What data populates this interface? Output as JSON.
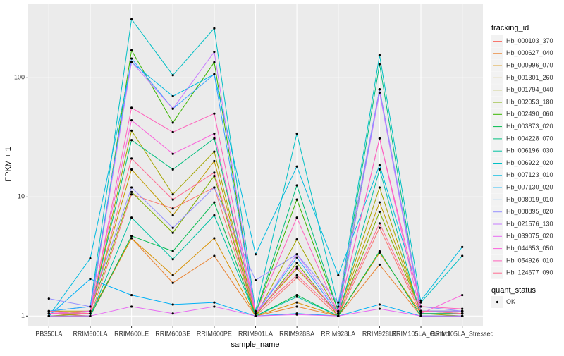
{
  "chart_data": {
    "type": "line",
    "ylabel": "FPKM + 1",
    "xlabel": "sample_name",
    "log_y": true,
    "grid": true,
    "legend_position": "right",
    "legend_title": "tracking_id",
    "categories": [
      "PB350LA",
      "RRIM600LA",
      "RRIM600LE",
      "RRIM600SE",
      "RRIM600PE",
      "RRIM901LA",
      "RRIM928BA",
      "RRIM928LA",
      "RRIM928LE",
      "RRIM105LA_Control",
      "RRIM105LA_Stressed"
    ],
    "ylim": [
      0.83,
      420
    ],
    "yticks": [
      1,
      10,
      100
    ],
    "point_legend": {
      "title": "quant_status",
      "labels": [
        "OK"
      ],
      "color": "#000000"
    },
    "series": [
      {
        "name": "Hb_000103_370",
        "color": "#F8766D",
        "values": [
          1.05,
          1.0,
          10.5,
          8,
          12,
          1.0,
          2.1,
          1.0,
          5.5,
          1.05,
          1.05
        ]
      },
      {
        "name": "Hb_000627_040",
        "color": "#EA8331",
        "values": [
          1.0,
          1.0,
          4.5,
          1.9,
          3.2,
          1.0,
          1.2,
          1.0,
          2.7,
          1.0,
          1.0
        ]
      },
      {
        "name": "Hb_000996_070",
        "color": "#D89000",
        "values": [
          1.05,
          1.05,
          4.5,
          2.2,
          4.5,
          1.0,
          1.3,
          1.0,
          3.4,
          1.05,
          1.05
        ]
      },
      {
        "name": "Hb_001301_260",
        "color": "#C09B00",
        "values": [
          1.1,
          1.1,
          17,
          7,
          20,
          1.05,
          2.5,
          1.05,
          9,
          1.1,
          1.1
        ]
      },
      {
        "name": "Hb_001794_040",
        "color": "#A3A500",
        "values": [
          1.0,
          1.05,
          36,
          10.5,
          24,
          1.0,
          4.4,
          1.05,
          12,
          1.05,
          1.0
        ]
      },
      {
        "name": "Hb_002053_180",
        "color": "#7CAE00",
        "values": [
          1.05,
          1.1,
          11,
          5,
          15,
          1.0,
          2.8,
          1.0,
          7.5,
          1.1,
          1.05
        ]
      },
      {
        "name": "Hb_002490_060",
        "color": "#39B600",
        "values": [
          1.1,
          1.05,
          170,
          42,
          135,
          1.05,
          9.5,
          1.1,
          80,
          1.1,
          1.1
        ]
      },
      {
        "name": "Hb_003873_020",
        "color": "#00BB4E",
        "values": [
          1.0,
          1.0,
          4.7,
          3.5,
          9,
          1.0,
          1.5,
          1.0,
          3.5,
          1.0,
          1.0
        ]
      },
      {
        "name": "Hb_004228_070",
        "color": "#00BF7D",
        "values": [
          1.05,
          1.05,
          30,
          17,
          31,
          1.05,
          12.5,
          1.1,
          130,
          1.05,
          1.05
        ]
      },
      {
        "name": "Hb_006196_030",
        "color": "#00C1A3",
        "values": [
          1.0,
          1.0,
          6.7,
          3,
          7,
          1.0,
          1.45,
          1.0,
          17,
          1.0,
          1.0
        ]
      },
      {
        "name": "Hb_006922_020",
        "color": "#00BFC4",
        "values": [
          1.1,
          1.2,
          310,
          105,
          260,
          1.1,
          34,
          1.2,
          155,
          1.3,
          3.2
        ]
      },
      {
        "name": "Hb_007123_010",
        "color": "#00BAE0",
        "values": [
          1.0,
          3.05,
          135,
          70,
          107,
          3.3,
          18,
          2.2,
          18.5,
          1.35,
          3.8
        ]
      },
      {
        "name": "Hb_007130_020",
        "color": "#00B0F6",
        "values": [
          1.0,
          2.05,
          1.5,
          1.25,
          1.3,
          1.0,
          1.05,
          1.0,
          1.25,
          1.0,
          1.0
        ]
      },
      {
        "name": "Hb_008019_010",
        "color": "#35A2FF",
        "values": [
          1.1,
          1.2,
          145,
          55,
          107,
          1.05,
          3.1,
          1.05,
          80,
          1.1,
          1.1
        ]
      },
      {
        "name": "Hb_008895_020",
        "color": "#9590FF",
        "values": [
          1.4,
          1.2,
          12,
          5.5,
          12,
          2.0,
          3.3,
          1.3,
          80,
          1.2,
          1.1
        ]
      },
      {
        "name": "Hb_021576_130",
        "color": "#C77CFF",
        "values": [
          1.05,
          1.1,
          136,
          55,
          165,
          1.05,
          3.3,
          1.1,
          75,
          1.1,
          1.1
        ]
      },
      {
        "name": "Hb_039075_020",
        "color": "#E76BF3",
        "values": [
          1.0,
          1.0,
          1.2,
          1.05,
          1.2,
          1.0,
          1.03,
          1.0,
          1.15,
          1.0,
          1.0
        ]
      },
      {
        "name": "Hb_044653_050",
        "color": "#FA62DB",
        "values": [
          1.05,
          1.1,
          44,
          23,
          34,
          1.05,
          2.6,
          1.05,
          31,
          1.05,
          1.5
        ]
      },
      {
        "name": "Hb_054926_010",
        "color": "#FF62BC",
        "values": [
          1.05,
          1.05,
          56,
          35,
          50,
          1.05,
          6.7,
          1.05,
          31,
          1.2,
          1.15
        ]
      },
      {
        "name": "Hb_124677_090",
        "color": "#FF6C91",
        "values": [
          1.1,
          1.05,
          21,
          9.5,
          16,
          1.05,
          2.2,
          1.05,
          6,
          1.1,
          1.05
        ]
      }
    ]
  }
}
